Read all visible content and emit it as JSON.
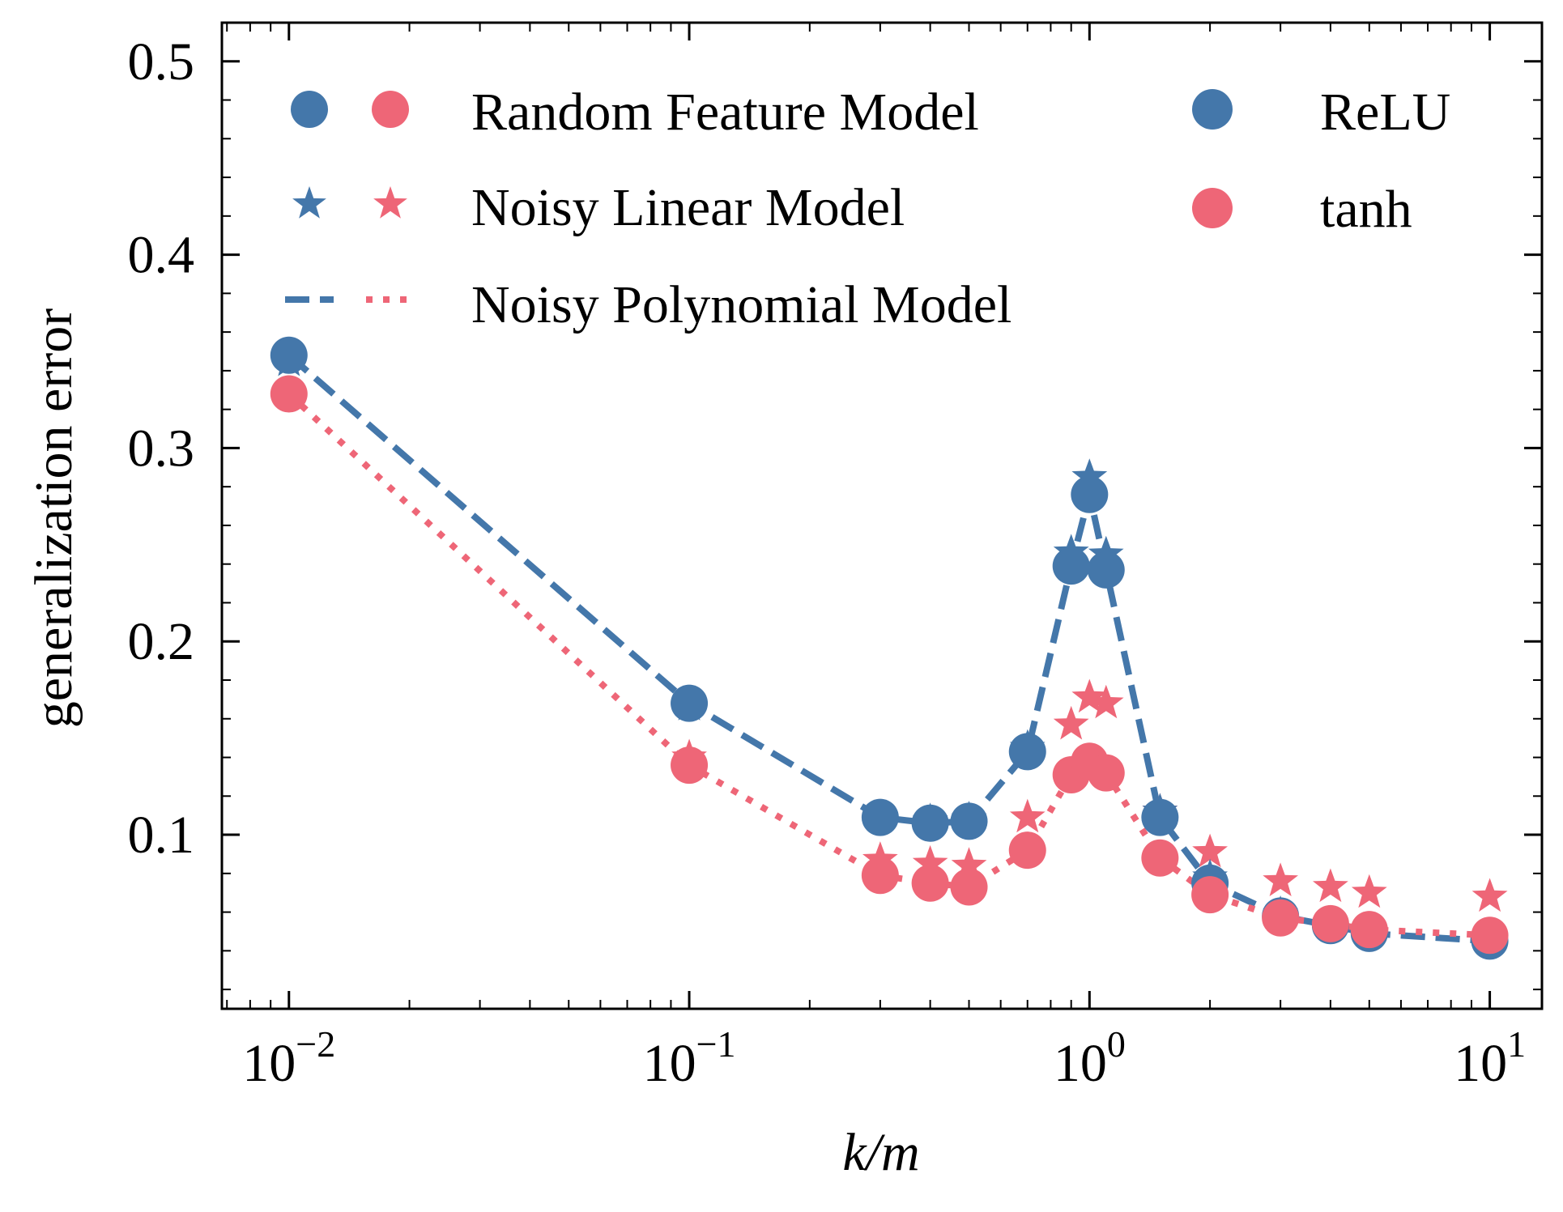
{
  "chart_data": {
    "type": "line",
    "title": "",
    "xlabel": "k/m",
    "ylabel": "generalization error",
    "xscale": "log",
    "xlim": [
      0.0068,
      13.5
    ],
    "ylim": [
      0.01,
      0.52
    ],
    "x_ticks": [
      {
        "value": 0.01,
        "base": "10",
        "exp": "−2"
      },
      {
        "value": 0.1,
        "base": "10",
        "exp": "−1"
      },
      {
        "value": 1,
        "base": "10",
        "exp": "0"
      },
      {
        "value": 10,
        "base": "10",
        "exp": "1"
      }
    ],
    "y_ticks": [
      {
        "value": 0.1,
        "label": "0.1"
      },
      {
        "value": 0.2,
        "label": "0.2"
      },
      {
        "value": 0.3,
        "label": "0.3"
      },
      {
        "value": 0.4,
        "label": "0.4"
      },
      {
        "value": 0.5,
        "label": "0.5"
      }
    ],
    "colors": {
      "relu": "#4477aa",
      "tanh": "#ee6677"
    },
    "x": [
      0.01,
      0.1,
      0.3,
      0.4,
      0.5,
      0.7,
      0.9,
      1.0,
      1.1,
      1.5,
      2.0,
      3.0,
      4.0,
      5.0,
      10.0
    ],
    "series": [
      {
        "name": "Random Feature Model (ReLU)",
        "activation": "relu",
        "model": "random_feature",
        "marker": "circle",
        "values": [
          0.348,
          0.168,
          0.109,
          0.106,
          0.107,
          0.143,
          0.239,
          0.276,
          0.237,
          0.109,
          0.075,
          0.058,
          0.053,
          0.049,
          0.045
        ]
      },
      {
        "name": "Random Feature Model (tanh)",
        "activation": "tanh",
        "model": "random_feature",
        "marker": "circle",
        "values": [
          0.328,
          0.136,
          0.079,
          0.075,
          0.073,
          0.092,
          0.131,
          0.138,
          0.132,
          0.088,
          0.069,
          0.057,
          0.054,
          0.051,
          0.048
        ]
      },
      {
        "name": "Noisy Linear Model (ReLU)",
        "activation": "relu",
        "model": "noisy_linear",
        "marker": "star",
        "values": [
          0.345,
          0.167,
          0.109,
          0.107,
          0.108,
          0.145,
          0.246,
          0.285,
          0.245,
          0.112,
          0.078,
          0.059,
          0.054,
          0.05,
          0.046
        ]
      },
      {
        "name": "Noisy Linear Model (tanh)",
        "activation": "tanh",
        "model": "noisy_linear",
        "marker": "star",
        "values": [
          0.328,
          0.14,
          0.087,
          0.085,
          0.084,
          0.109,
          0.157,
          0.171,
          0.168,
          0.112,
          0.091,
          0.076,
          0.073,
          0.07,
          0.068
        ]
      },
      {
        "name": "Noisy Polynomial Model (ReLU)",
        "activation": "relu",
        "model": "noisy_polynomial",
        "line": "dashed",
        "values": [
          0.348,
          0.168,
          0.109,
          0.106,
          0.107,
          0.143,
          0.239,
          0.276,
          0.237,
          0.109,
          0.075,
          0.058,
          0.053,
          0.049,
          0.045
        ]
      },
      {
        "name": "Noisy Polynomial Model (tanh)",
        "activation": "tanh",
        "model": "noisy_polynomial",
        "line": "dotted",
        "values": [
          0.328,
          0.136,
          0.079,
          0.075,
          0.073,
          0.092,
          0.131,
          0.138,
          0.132,
          0.088,
          0.069,
          0.057,
          0.054,
          0.051,
          0.048
        ]
      }
    ],
    "legend": {
      "placement": "upper-left",
      "model_entries": [
        "Random Feature Model",
        "Noisy Linear Model",
        "Noisy Polynomial Model"
      ],
      "activation_entries": [
        "ReLU",
        "tanh"
      ]
    }
  }
}
